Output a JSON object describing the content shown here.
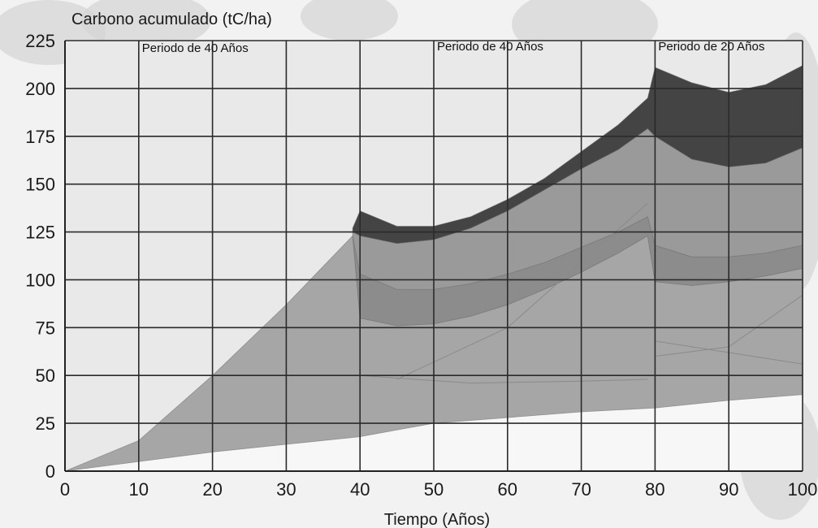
{
  "chart_data": {
    "type": "area",
    "ylabel": "Carbono acumulado (tC/ha)",
    "xlabel": "Tiempo (Años)",
    "xlim": [
      0,
      100
    ],
    "ylim": [
      0,
      225
    ],
    "x_ticks": [
      0,
      10,
      20,
      30,
      40,
      50,
      60,
      70,
      80,
      90,
      100
    ],
    "y_ticks": [
      0,
      25,
      50,
      75,
      100,
      125,
      150,
      175,
      200,
      225
    ],
    "grid": true,
    "annotations": [
      {
        "text": "Periodo de 40 Años",
        "x": 10,
        "y": 219
      },
      {
        "text": "Periodo de 40 Años",
        "x": 50,
        "y": 220
      },
      {
        "text": "Periodo de 20 Años",
        "x": 80,
        "y": 220
      }
    ],
    "series": [
      {
        "color": "#a6a6a6",
        "upper": [
          [
            0,
            0
          ],
          [
            10,
            16
          ],
          [
            20,
            50
          ],
          [
            30,
            87
          ],
          [
            39,
            123
          ],
          [
            40,
            80
          ],
          [
            45,
            76
          ],
          [
            50,
            77
          ],
          [
            55,
            81
          ],
          [
            60,
            87
          ],
          [
            65,
            95
          ],
          [
            70,
            104
          ],
          [
            75,
            114
          ],
          [
            79,
            123
          ],
          [
            80,
            99
          ],
          [
            85,
            97
          ],
          [
            90,
            99
          ],
          [
            95,
            102
          ],
          [
            100,
            106
          ]
        ],
        "lower": [
          [
            0,
            0
          ],
          [
            10,
            5
          ],
          [
            20,
            10
          ],
          [
            30,
            14
          ],
          [
            40,
            18
          ],
          [
            50,
            25
          ],
          [
            60,
            28
          ],
          [
            70,
            31
          ],
          [
            80,
            33
          ],
          [
            90,
            37
          ],
          [
            100,
            40
          ]
        ]
      },
      {
        "color": "#8c8c8c",
        "upper": [
          [
            39,
            123
          ],
          [
            40,
            103
          ],
          [
            45,
            95
          ],
          [
            50,
            95
          ],
          [
            55,
            98
          ],
          [
            60,
            103
          ],
          [
            65,
            109
          ],
          [
            70,
            117
          ],
          [
            75,
            125
          ],
          [
            79,
            133
          ],
          [
            80,
            118
          ],
          [
            85,
            112
          ],
          [
            90,
            112
          ],
          [
            95,
            114
          ],
          [
            100,
            118
          ]
        ],
        "lower": [
          [
            39,
            123
          ],
          [
            40,
            80
          ],
          [
            45,
            76
          ],
          [
            50,
            77
          ],
          [
            55,
            81
          ],
          [
            60,
            87
          ],
          [
            65,
            95
          ],
          [
            70,
            104
          ],
          [
            75,
            114
          ],
          [
            79,
            123
          ],
          [
            80,
            99
          ],
          [
            85,
            97
          ],
          [
            90,
            99
          ],
          [
            95,
            102
          ],
          [
            100,
            106
          ]
        ]
      },
      {
        "color": "#9a9a9a",
        "upper": [
          [
            39,
            125
          ],
          [
            40,
            123
          ],
          [
            45,
            119
          ],
          [
            50,
            121
          ],
          [
            55,
            127
          ],
          [
            60,
            136
          ],
          [
            65,
            147
          ],
          [
            70,
            158
          ],
          [
            75,
            168
          ],
          [
            79,
            179
          ],
          [
            80,
            175
          ],
          [
            85,
            163
          ],
          [
            90,
            159
          ],
          [
            95,
            161
          ],
          [
            100,
            169
          ]
        ],
        "lower": [
          [
            39,
            123
          ],
          [
            40,
            103
          ],
          [
            45,
            95
          ],
          [
            50,
            95
          ],
          [
            55,
            98
          ],
          [
            60,
            103
          ],
          [
            65,
            109
          ],
          [
            70,
            117
          ],
          [
            75,
            125
          ],
          [
            79,
            133
          ],
          [
            80,
            118
          ],
          [
            85,
            112
          ],
          [
            90,
            112
          ],
          [
            95,
            114
          ],
          [
            100,
            118
          ]
        ]
      },
      {
        "color": "#444444",
        "upper": [
          [
            39,
            127
          ],
          [
            40,
            136
          ],
          [
            45,
            128
          ],
          [
            50,
            128
          ],
          [
            55,
            133
          ],
          [
            60,
            142
          ],
          [
            65,
            153
          ],
          [
            70,
            167
          ],
          [
            75,
            181
          ],
          [
            79,
            195
          ],
          [
            80,
            211
          ],
          [
            85,
            203
          ],
          [
            90,
            198
          ],
          [
            95,
            202
          ],
          [
            100,
            212
          ]
        ],
        "lower": [
          [
            39,
            125
          ],
          [
            40,
            123
          ],
          [
            45,
            119
          ],
          [
            50,
            121
          ],
          [
            55,
            127
          ],
          [
            60,
            136
          ],
          [
            65,
            147
          ],
          [
            70,
            158
          ],
          [
            75,
            168
          ],
          [
            79,
            179
          ],
          [
            80,
            175
          ],
          [
            85,
            163
          ],
          [
            90,
            159
          ],
          [
            95,
            161
          ],
          [
            100,
            169
          ]
        ]
      }
    ]
  }
}
